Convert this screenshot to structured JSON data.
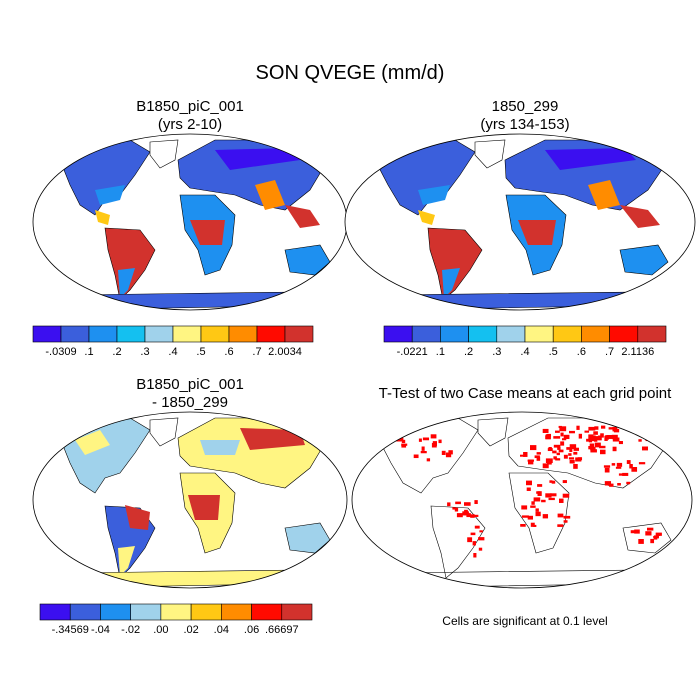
{
  "figure": {
    "title": "SON QVEGE (mm/d)",
    "footnote": "Cells are significant at 0.1 level"
  },
  "panels": [
    {
      "id": "case1",
      "title_line1": "B1850_piC_001",
      "title_line2": "(yrs 2-10)",
      "colorbar": {
        "colors": [
          "#3b0ff0",
          "#3b5fdc",
          "#1e90f0",
          "#14c0f0",
          "#a0d2eb",
          "#fff582",
          "#ffc814",
          "#ff8c00",
          "#ff0a00",
          "#d2322d"
        ],
        "labels": [
          "-.0309",
          ".1",
          ".2",
          ".3",
          ".4",
          ".5",
          ".6",
          ".7",
          "2.0034"
        ]
      }
    },
    {
      "id": "case2",
      "title_line1": "1850_299",
      "title_line2": "(yrs 134-153)",
      "colorbar": {
        "colors": [
          "#3b0ff0",
          "#3b5fdc",
          "#1e90f0",
          "#14c0f0",
          "#a0d2eb",
          "#fff582",
          "#ffc814",
          "#ff8c00",
          "#ff0a00",
          "#d2322d"
        ],
        "labels": [
          "-.0221",
          ".1",
          ".2",
          ".3",
          ".4",
          ".5",
          ".6",
          ".7",
          "2.1136"
        ]
      }
    },
    {
      "id": "diff",
      "title_line1": "B1850_piC_001",
      "title_line2": "- 1850_299",
      "colorbar": {
        "colors": [
          "#3b0ff0",
          "#3b5fdc",
          "#1e90f0",
          "#a0d2eb",
          "#fff582",
          "#ffc814",
          "#ff8c00",
          "#ff0a00",
          "#d2322d"
        ],
        "labels": [
          "-.34569",
          "-.04",
          "-.02",
          ".00",
          ".02",
          ".04",
          ".06",
          ".66697"
        ]
      }
    },
    {
      "id": "ttest",
      "title_line1": "T-Test of two Case means at each grid point",
      "title_line2": ""
    }
  ],
  "map_colors": {
    "ocean": "#ffffff",
    "outline": "#000000",
    "significant": "#ff0000"
  }
}
